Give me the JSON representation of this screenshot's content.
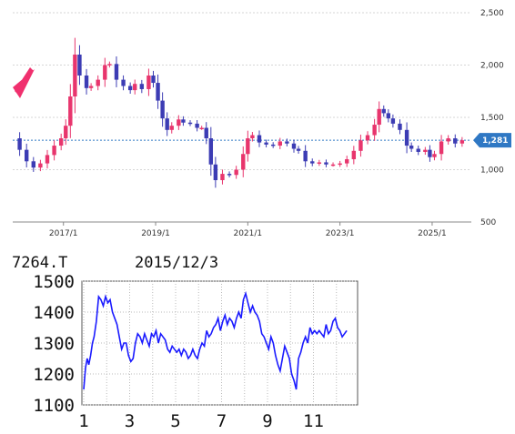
{
  "chart_data": [
    {
      "type": "candlestick",
      "x_tick_labels": [
        "2017/1",
        "2019/1",
        "2021/1",
        "2023/1",
        "2025/1"
      ],
      "y_tick_labels": [
        "2,500",
        "2,000",
        "1,500",
        "1,000",
        "500"
      ],
      "ylim": [
        500,
        2500
      ],
      "xlim": [
        2015.9,
        2025.85
      ],
      "grid": true,
      "current_price_label": "1,281",
      "current_price": 1281,
      "colors": {
        "up": "#e8356d",
        "down": "#3c3cb4",
        "badge": "#2f78c4",
        "arrow": "#f0306e"
      },
      "series": [
        {
          "x": 2015.92,
          "y": 1300
        },
        {
          "x": 2016.05,
          "y": 1190
        },
        {
          "x": 2016.2,
          "y": 1080
        },
        {
          "x": 2016.35,
          "y": 1020
        },
        {
          "x": 2016.5,
          "y": 1060
        },
        {
          "x": 2016.65,
          "y": 1140
        },
        {
          "x": 2016.8,
          "y": 1230
        },
        {
          "x": 2016.95,
          "y": 1300
        },
        {
          "x": 2017.05,
          "y": 1420
        },
        {
          "x": 2017.15,
          "y": 1700
        },
        {
          "x": 2017.25,
          "y": 2100
        },
        {
          "x": 2017.35,
          "y": 1900
        },
        {
          "x": 2017.5,
          "y": 1780
        },
        {
          "x": 2017.6,
          "y": 1800
        },
        {
          "x": 2017.75,
          "y": 1860
        },
        {
          "x": 2017.9,
          "y": 2000
        },
        {
          "x": 2018.0,
          "y": 2010
        },
        {
          "x": 2018.15,
          "y": 1860
        },
        {
          "x": 2018.3,
          "y": 1800
        },
        {
          "x": 2018.45,
          "y": 1760
        },
        {
          "x": 2018.55,
          "y": 1820
        },
        {
          "x": 2018.7,
          "y": 1770
        },
        {
          "x": 2018.85,
          "y": 1900
        },
        {
          "x": 2018.95,
          "y": 1830
        },
        {
          "x": 2019.05,
          "y": 1660
        },
        {
          "x": 2019.15,
          "y": 1490
        },
        {
          "x": 2019.25,
          "y": 1380
        },
        {
          "x": 2019.35,
          "y": 1420
        },
        {
          "x": 2019.5,
          "y": 1480
        },
        {
          "x": 2019.6,
          "y": 1450
        },
        {
          "x": 2019.75,
          "y": 1440
        },
        {
          "x": 2019.9,
          "y": 1400
        },
        {
          "x": 2020.0,
          "y": 1400
        },
        {
          "x": 2020.1,
          "y": 1300
        },
        {
          "x": 2020.2,
          "y": 1050
        },
        {
          "x": 2020.3,
          "y": 900
        },
        {
          "x": 2020.45,
          "y": 960
        },
        {
          "x": 2020.6,
          "y": 950
        },
        {
          "x": 2020.75,
          "y": 1000
        },
        {
          "x": 2020.9,
          "y": 1150
        },
        {
          "x": 2021.0,
          "y": 1300
        },
        {
          "x": 2021.1,
          "y": 1330
        },
        {
          "x": 2021.25,
          "y": 1260
        },
        {
          "x": 2021.4,
          "y": 1240
        },
        {
          "x": 2021.55,
          "y": 1230
        },
        {
          "x": 2021.7,
          "y": 1270
        },
        {
          "x": 2021.85,
          "y": 1250
        },
        {
          "x": 2022.0,
          "y": 1200
        },
        {
          "x": 2022.1,
          "y": 1180
        },
        {
          "x": 2022.25,
          "y": 1080
        },
        {
          "x": 2022.4,
          "y": 1060
        },
        {
          "x": 2022.55,
          "y": 1070
        },
        {
          "x": 2022.7,
          "y": 1050
        },
        {
          "x": 2022.85,
          "y": 1050
        },
        {
          "x": 2023.0,
          "y": 1060
        },
        {
          "x": 2023.15,
          "y": 1100
        },
        {
          "x": 2023.3,
          "y": 1180
        },
        {
          "x": 2023.45,
          "y": 1280
        },
        {
          "x": 2023.6,
          "y": 1330
        },
        {
          "x": 2023.75,
          "y": 1430
        },
        {
          "x": 2023.85,
          "y": 1580
        },
        {
          "x": 2023.95,
          "y": 1540
        },
        {
          "x": 2024.05,
          "y": 1490
        },
        {
          "x": 2024.15,
          "y": 1440
        },
        {
          "x": 2024.3,
          "y": 1380
        },
        {
          "x": 2024.45,
          "y": 1230
        },
        {
          "x": 2024.55,
          "y": 1200
        },
        {
          "x": 2024.7,
          "y": 1170
        },
        {
          "x": 2024.85,
          "y": 1190
        },
        {
          "x": 2024.95,
          "y": 1120
        },
        {
          "x": 2025.05,
          "y": 1150
        },
        {
          "x": 2025.2,
          "y": 1270
        },
        {
          "x": 2025.35,
          "y": 1300
        },
        {
          "x": 2025.5,
          "y": 1250
        },
        {
          "x": 2025.65,
          "y": 1281
        }
      ]
    },
    {
      "type": "line",
      "ticker": "7264.T",
      "date": "2015/12/3",
      "x_tick_labels": [
        "1",
        "3",
        "5",
        "7",
        "9",
        "11"
      ],
      "y_tick_labels": [
        "1500",
        "1400",
        "1300",
        "1200",
        "1100"
      ],
      "ylim": [
        1100,
        1500
      ],
      "xlim": [
        1,
        13
      ],
      "grid": true,
      "color": "#1a1aff",
      "x": [
        1.0,
        1.08,
        1.15,
        1.22,
        1.3,
        1.38,
        1.45,
        1.55,
        1.65,
        1.75,
        1.85,
        1.95,
        2.05,
        2.15,
        2.25,
        2.35,
        2.45,
        2.55,
        2.65,
        2.75,
        2.85,
        2.95,
        3.05,
        3.15,
        3.25,
        3.35,
        3.45,
        3.55,
        3.65,
        3.75,
        3.85,
        3.95,
        4.05,
        4.15,
        4.25,
        4.35,
        4.45,
        4.55,
        4.65,
        4.75,
        4.85,
        4.95,
        5.05,
        5.15,
        5.25,
        5.35,
        5.45,
        5.55,
        5.65,
        5.75,
        5.85,
        5.95,
        6.05,
        6.15,
        6.25,
        6.35,
        6.45,
        6.55,
        6.65,
        6.75,
        6.85,
        6.95,
        7.05,
        7.15,
        7.25,
        7.35,
        7.45,
        7.55,
        7.65,
        7.75,
        7.85,
        7.95,
        8.05,
        8.15,
        8.25,
        8.35,
        8.45,
        8.55,
        8.65,
        8.75,
        8.85,
        8.95,
        9.05,
        9.15,
        9.25,
        9.35,
        9.45,
        9.55,
        9.65,
        9.75,
        9.85,
        9.95,
        10.05,
        10.15,
        10.25,
        10.35,
        10.45,
        10.55,
        10.65,
        10.75,
        10.85,
        10.95,
        11.05,
        11.15,
        11.25,
        11.35,
        11.45,
        11.55,
        11.65,
        11.75,
        11.85,
        11.95,
        12.05,
        12.15,
        12.25,
        12.35,
        12.45
      ],
      "y": [
        1150,
        1220,
        1250,
        1230,
        1260,
        1300,
        1320,
        1370,
        1450,
        1440,
        1420,
        1450,
        1430,
        1440,
        1400,
        1380,
        1360,
        1320,
        1280,
        1300,
        1300,
        1260,
        1240,
        1250,
        1300,
        1330,
        1320,
        1300,
        1330,
        1310,
        1290,
        1330,
        1320,
        1340,
        1300,
        1330,
        1320,
        1310,
        1280,
        1270,
        1290,
        1280,
        1270,
        1280,
        1260,
        1280,
        1270,
        1250,
        1260,
        1280,
        1260,
        1250,
        1280,
        1300,
        1290,
        1340,
        1320,
        1330,
        1350,
        1360,
        1380,
        1340,
        1370,
        1390,
        1360,
        1380,
        1370,
        1350,
        1380,
        1400,
        1380,
        1440,
        1460,
        1430,
        1400,
        1420,
        1400,
        1390,
        1370,
        1330,
        1320,
        1300,
        1280,
        1320,
        1300,
        1260,
        1230,
        1210,
        1250,
        1290,
        1270,
        1250,
        1200,
        1180,
        1150,
        1250,
        1270,
        1300,
        1320,
        1300,
        1350,
        1330,
        1340,
        1330,
        1340,
        1330,
        1320,
        1360,
        1330,
        1340,
        1370,
        1380,
        1350,
        1340,
        1320,
        1330,
        1340
      ]
    }
  ]
}
